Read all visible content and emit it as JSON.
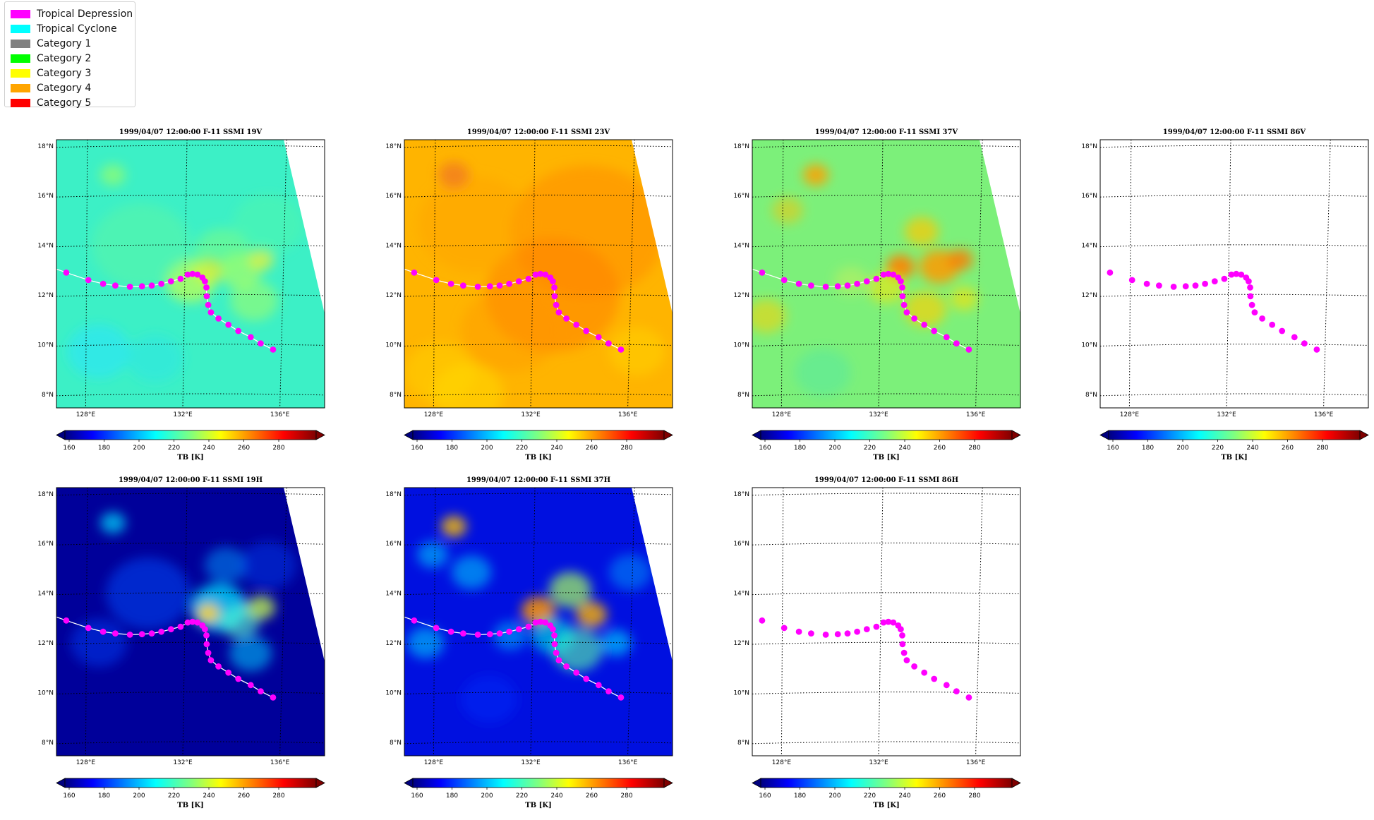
{
  "legend": [
    {
      "label": "Tropical Depression",
      "color": "#ff00ff"
    },
    {
      "label": "Tropical Cyclone",
      "color": "#00ffff"
    },
    {
      "label": "Category 1",
      "color": "#808080"
    },
    {
      "label": "Category 2",
      "color": "#00ff00"
    },
    {
      "label": "Category 3",
      "color": "#ffff00"
    },
    {
      "label": "Category 4",
      "color": "#ffa500"
    },
    {
      "label": "Category 5",
      "color": "#ff0000"
    }
  ],
  "map": {
    "lat_labels": [
      "18°N",
      "16°N",
      "14°N",
      "12°N",
      "10°N",
      "8°N"
    ],
    "lon_labels": [
      "128°E",
      "132°E",
      "136°E"
    ]
  },
  "colorbar": {
    "ticks": [
      "160",
      "180",
      "200",
      "220",
      "240",
      "260",
      "280"
    ],
    "label": "TB [K]"
  },
  "track": [
    [
      127.4,
      12.9
    ],
    [
      128.3,
      12.6
    ],
    [
      128.9,
      12.45
    ],
    [
      129.4,
      12.38
    ],
    [
      130.0,
      12.33
    ],
    [
      130.5,
      12.35
    ],
    [
      130.9,
      12.38
    ],
    [
      131.3,
      12.45
    ],
    [
      131.7,
      12.55
    ],
    [
      132.1,
      12.65
    ],
    [
      132.4,
      12.82
    ],
    [
      132.6,
      12.85
    ],
    [
      132.8,
      12.82
    ],
    [
      133.0,
      12.7
    ],
    [
      133.1,
      12.55
    ],
    [
      133.15,
      12.3
    ],
    [
      133.15,
      11.95
    ],
    [
      133.2,
      11.6
    ],
    [
      133.3,
      11.3
    ],
    [
      133.6,
      11.05
    ],
    [
      134.0,
      10.8
    ],
    [
      134.4,
      10.55
    ],
    [
      134.9,
      10.3
    ],
    [
      135.3,
      10.05
    ],
    [
      135.8,
      9.8
    ]
  ],
  "panels": [
    {
      "title": "1999/04/07 12:00:00  F-11 SSMI 19V",
      "field": "v19"
    },
    {
      "title": "1999/04/07 12:00:00  F-11 SSMI 23V",
      "field": "v23"
    },
    {
      "title": "1999/04/07 12:00:00  F-11 SSMI 37V",
      "field": "v37"
    },
    {
      "title": "1999/04/07 12:00:00  F-11 SSMI 86V",
      "field": "none"
    },
    {
      "title": "1999/04/07 12:00:00  F-11 SSMI 19H",
      "field": "h19"
    },
    {
      "title": "1999/04/07 12:00:00  F-11 SSMI 37H",
      "field": "h37"
    },
    {
      "title": "1999/04/07 12:00:00  F-11 SSMI 86H",
      "field": "none"
    }
  ]
}
